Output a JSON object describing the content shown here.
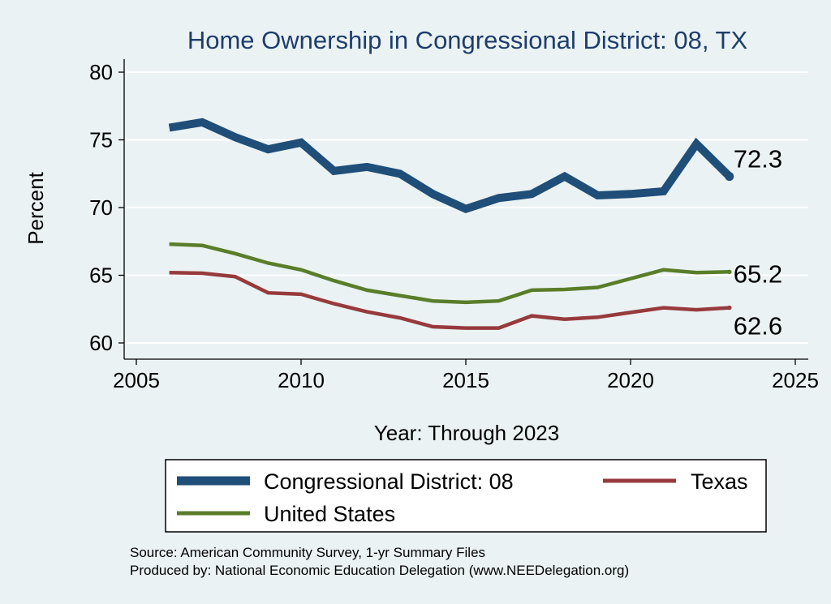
{
  "chart_data": {
    "type": "line",
    "title": "Home Ownership in Congressional District:  08, TX",
    "xlabel": "Year: Through 2023",
    "ylabel": "Percent",
    "xlim": [
      2005,
      2025
    ],
    "ylim": [
      59.5,
      81
    ],
    "x_ticks": [
      2005,
      2010,
      2015,
      2020,
      2025
    ],
    "y_ticks": [
      60,
      65,
      70,
      75,
      80
    ],
    "grid": true,
    "legend_position": "bottom",
    "x": [
      2006,
      2007,
      2008,
      2009,
      2010,
      2011,
      2012,
      2013,
      2014,
      2015,
      2016,
      2017,
      2018,
      2019,
      2020,
      2021,
      2022,
      2023
    ],
    "series": [
      {
        "name": "Congressional District:  08",
        "color": "#1f4e79",
        "values": [
          75.9,
          76.3,
          75.2,
          74.3,
          74.8,
          72.7,
          73.0,
          72.5,
          71.0,
          69.9,
          70.7,
          71.0,
          72.3,
          70.9,
          71.0,
          71.2,
          74.7,
          72.3
        ],
        "end_label": "72.3"
      },
      {
        "name": "Texas",
        "color": "#973a3c",
        "values": [
          65.2,
          65.15,
          64.9,
          63.7,
          63.6,
          62.9,
          62.3,
          61.85,
          61.2,
          61.1,
          61.1,
          62.0,
          61.75,
          61.9,
          62.25,
          62.6,
          62.45,
          62.6
        ],
        "end_label": "62.6"
      },
      {
        "name": "United States",
        "color": "#5a7d2a",
        "values": [
          67.3,
          67.2,
          66.6,
          65.9,
          65.4,
          64.6,
          63.9,
          63.5,
          63.1,
          63.0,
          63.1,
          63.9,
          63.95,
          64.1,
          64.75,
          65.4,
          65.2,
          65.25
        ],
        "end_label": "65.2"
      }
    ],
    "legend": [
      {
        "label": "Congressional District:  08",
        "color": "#1f4e79"
      },
      {
        "label": "Texas",
        "color": "#973a3c"
      },
      {
        "label": "United States",
        "color": "#5a7d2a"
      }
    ],
    "notes": [
      "Source: American Community Survey, 1-yr Summary Files",
      "Produced by: National Economic Education Delegation (www.NEEDelegation.org)"
    ]
  }
}
